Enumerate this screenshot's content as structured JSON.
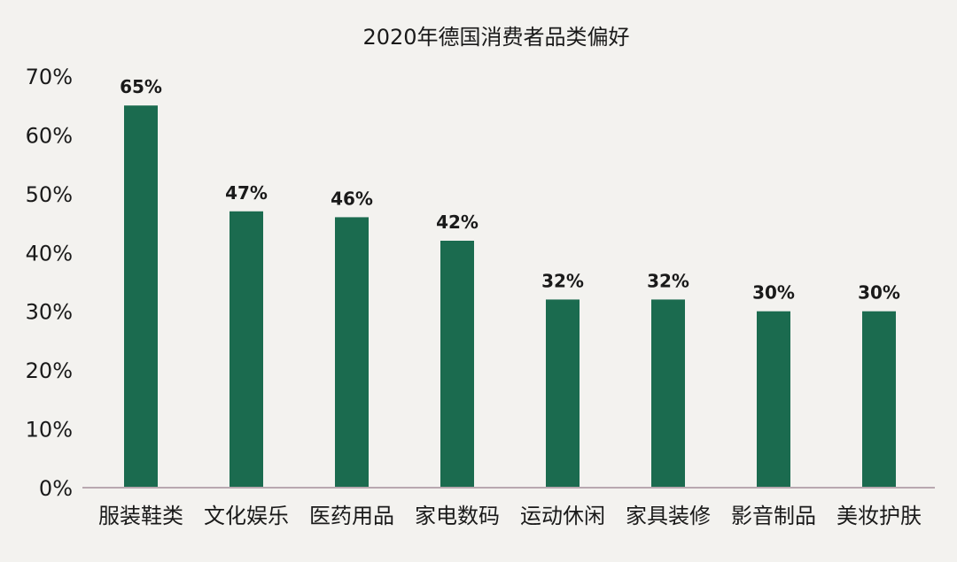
{
  "chart_data": {
    "type": "bar",
    "title": "2020年德国消费者品类偏好",
    "categories": [
      "服装鞋类",
      "文化娱乐",
      "医药用品",
      "家电数码",
      "运动休闲",
      "家具装修",
      "影音制品",
      "美妆护肤"
    ],
    "values": [
      65,
      47,
      46,
      42,
      32,
      32,
      30,
      30
    ],
    "data_labels": [
      "65%",
      "47%",
      "46%",
      "42%",
      "32%",
      "32%",
      "30%",
      "30%"
    ],
    "y_ticks": [
      "0%",
      "10%",
      "20%",
      "30%",
      "40%",
      "50%",
      "60%",
      "70%"
    ],
    "ylim": [
      0,
      70
    ],
    "xlabel": "",
    "ylabel": "",
    "grid": false,
    "legend": "none",
    "colors": {
      "bar": "#1b6b4f",
      "axis": "#b8a8b0",
      "background": "#f3f2ef"
    }
  }
}
